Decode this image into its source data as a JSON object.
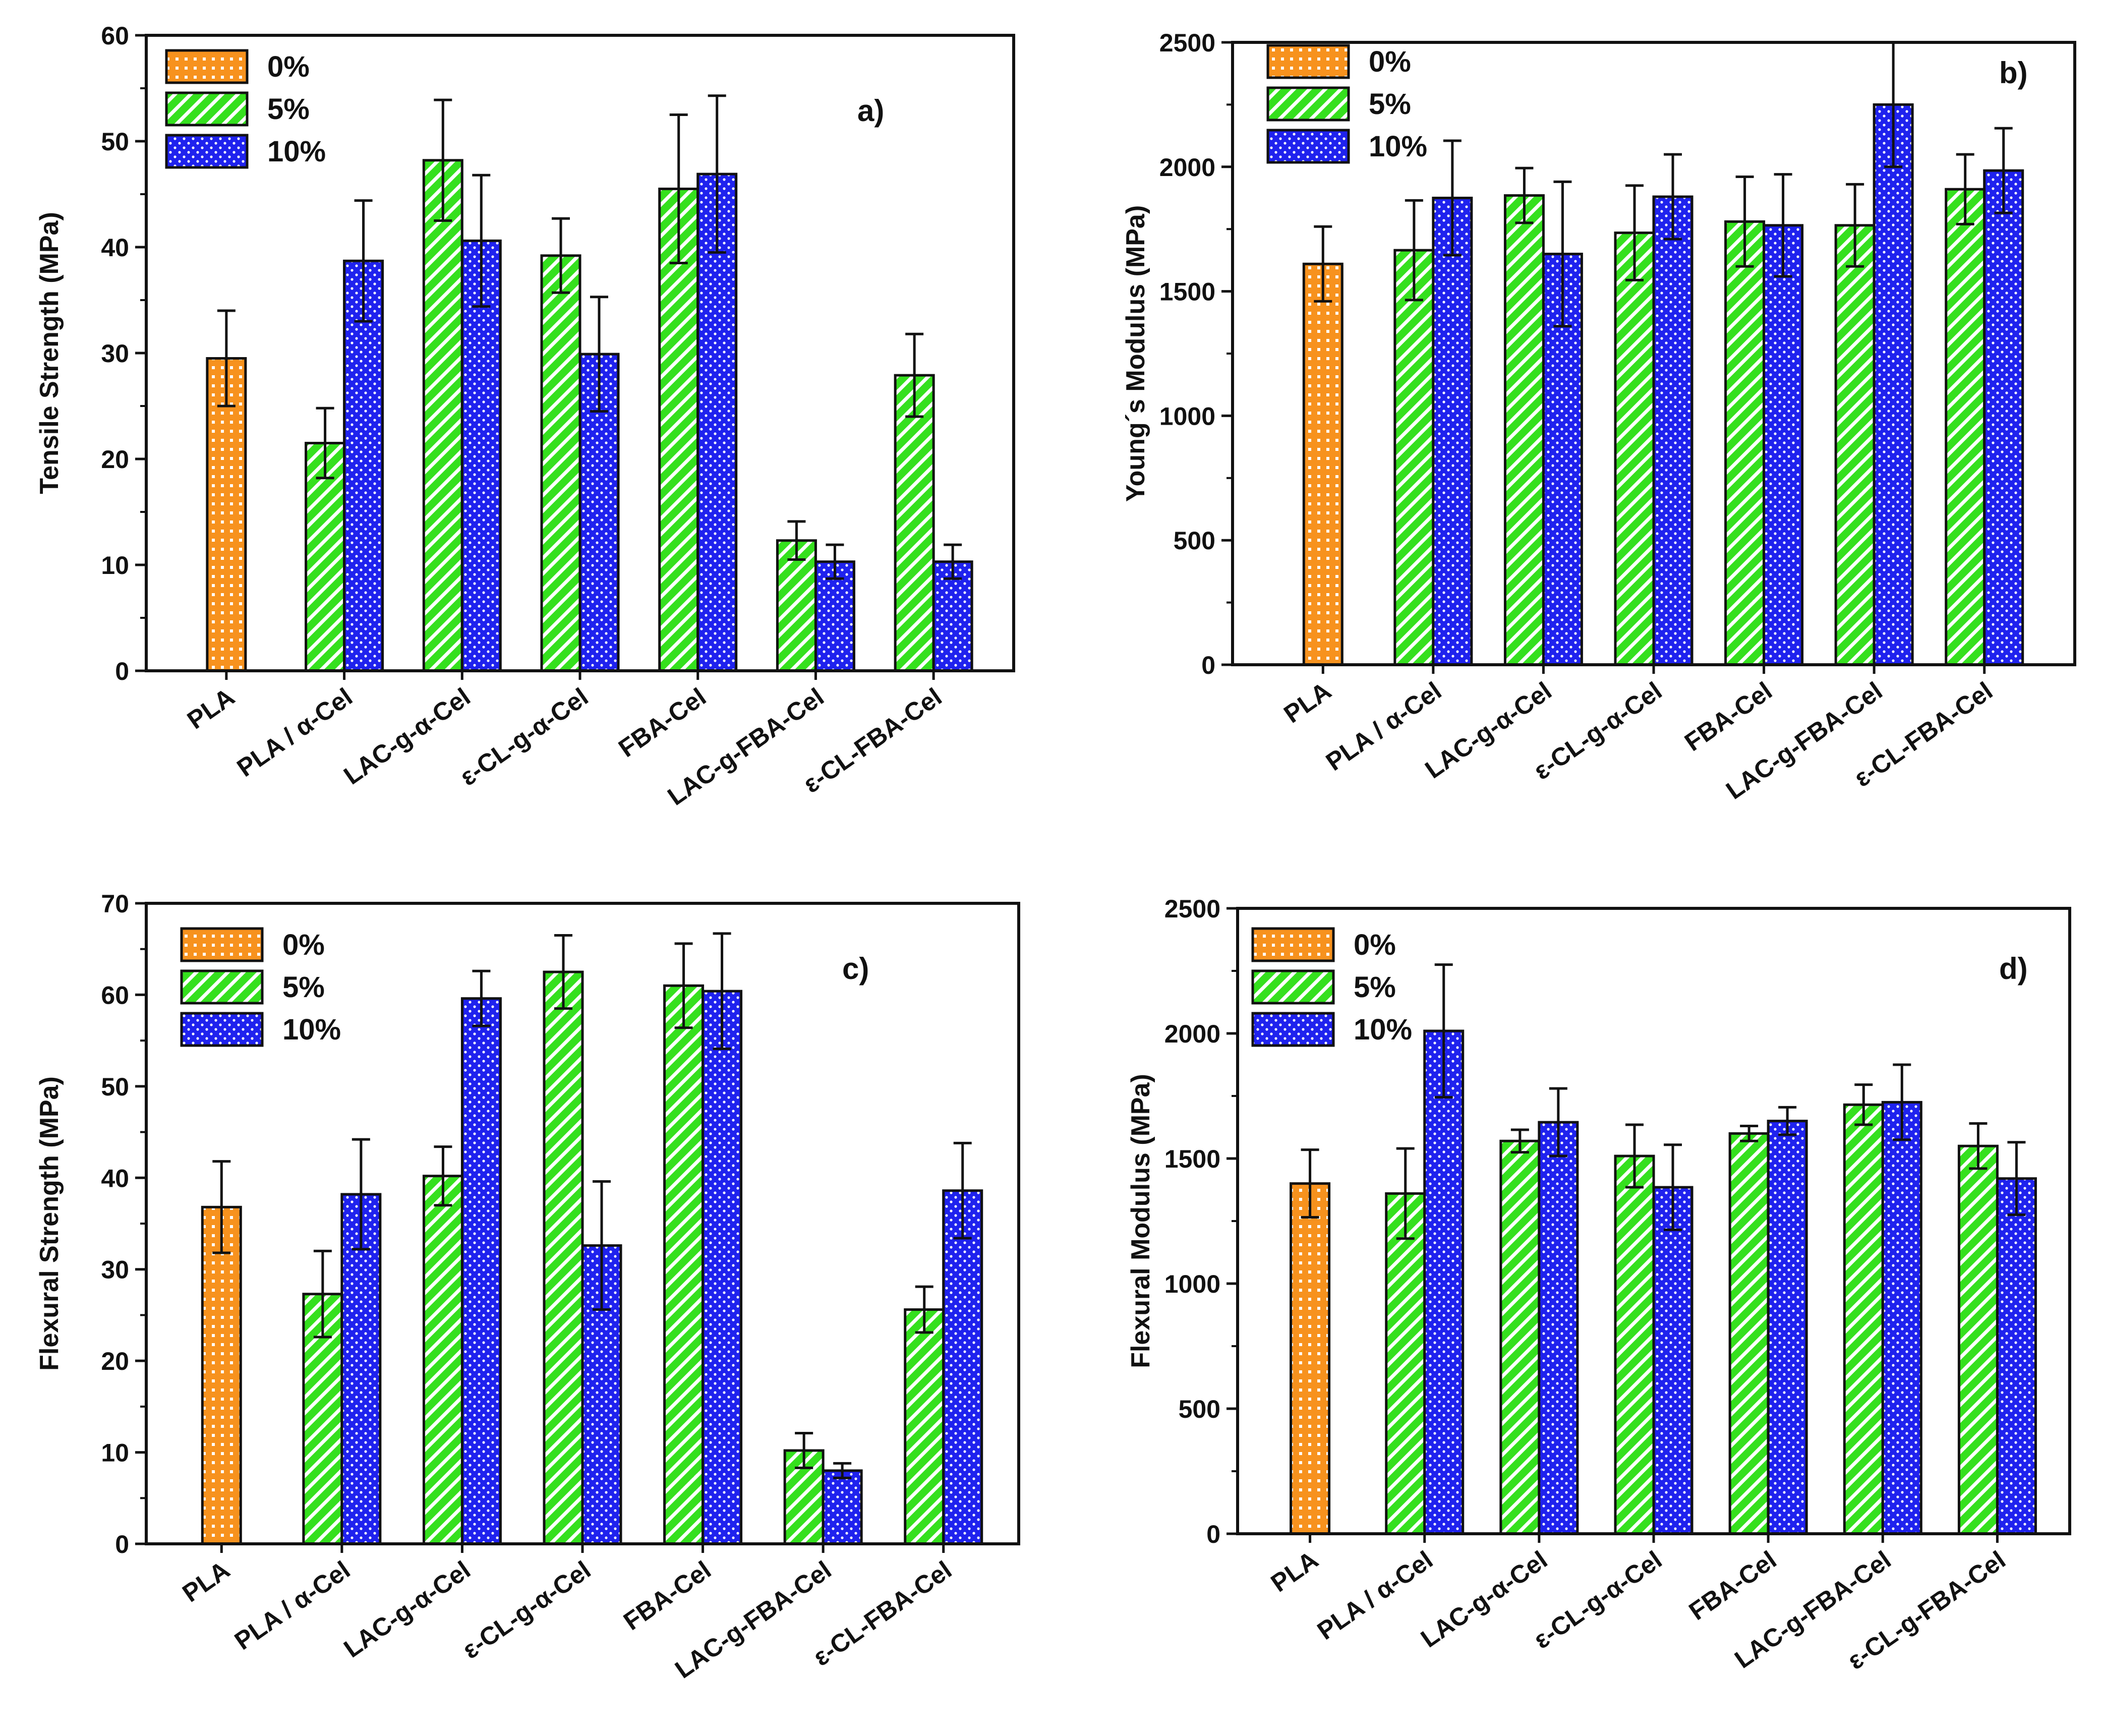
{
  "series_style": {
    "0%": {
      "color": "#F7921E",
      "pattern": "grid"
    },
    "5%": {
      "color": "#35E01E",
      "pattern": "diag"
    },
    "10%": {
      "color": "#1F22EE",
      "pattern": "dots"
    }
  },
  "chart_data": [
    {
      "id": "a",
      "type": "bar",
      "panel_label": "a)",
      "ylabel": "Tensile Strength (MPa)",
      "ylim": [
        0,
        60
      ],
      "yticks": [
        0,
        10,
        20,
        30,
        40,
        50,
        60
      ],
      "categories": [
        "PLA",
        "PLA / α-Cel",
        "LAC-g-α-Cel",
        "ε-CL-g-α-Cel",
        "FBA-Cel",
        "LAC-g-FBA-Cel",
        "ε-CL-FBA-Cel"
      ],
      "legend": [
        "0%",
        "5%",
        "10%"
      ],
      "series": [
        {
          "name": "0%",
          "values": [
            29.5,
            null,
            null,
            null,
            null,
            null,
            null
          ],
          "errors": [
            4.5,
            null,
            null,
            null,
            null,
            null,
            null
          ]
        },
        {
          "name": "5%",
          "values": [
            null,
            21.5,
            48.2,
            39.2,
            45.5,
            12.3,
            27.9
          ],
          "errors": [
            null,
            3.3,
            5.7,
            3.5,
            7.0,
            1.8,
            3.9
          ]
        },
        {
          "name": "10%",
          "values": [
            null,
            38.7,
            40.6,
            29.9,
            46.9,
            10.3,
            10.3
          ],
          "errors": [
            null,
            5.7,
            6.2,
            5.4,
            7.4,
            1.6,
            1.6
          ]
        }
      ]
    },
    {
      "id": "b",
      "type": "bar",
      "panel_label": "b)",
      "ylabel": "Young´s Modulus (MPa)",
      "ylim": [
        0,
        2500
      ],
      "yticks": [
        0,
        500,
        1000,
        1500,
        2000,
        2500
      ],
      "categories": [
        "PLA",
        "PLA / α-Cel",
        "LAC-g-α-Cel",
        "ε-CL-g-α-Cel",
        "FBA-Cel",
        "LAC-g-FBA-Cel",
        "ε-CL-FBA-Cel"
      ],
      "legend": [
        "0%",
        "5%",
        "10%"
      ],
      "series": [
        {
          "name": "0%",
          "values": [
            1610,
            null,
            null,
            null,
            null,
            null,
            null
          ],
          "errors": [
            150,
            null,
            null,
            null,
            null,
            null,
            null
          ]
        },
        {
          "name": "5%",
          "values": [
            null,
            1665,
            1885,
            1735,
            1780,
            1765,
            1910
          ],
          "errors": [
            null,
            200,
            110,
            190,
            180,
            165,
            140
          ]
        },
        {
          "name": "10%",
          "values": [
            null,
            1875,
            1650,
            1880,
            1765,
            2250,
            1985
          ],
          "errors": [
            null,
            230,
            290,
            170,
            205,
            250,
            170
          ]
        }
      ]
    },
    {
      "id": "c",
      "type": "bar",
      "panel_label": "c)",
      "ylabel": "Flexural Strength (MPa)",
      "ylim": [
        0,
        70
      ],
      "yticks": [
        0,
        10,
        20,
        30,
        40,
        50,
        60,
        70
      ],
      "categories": [
        "PLA",
        "PLA / α-Cel",
        "LAC-g-α-Cel",
        "ε-CL-g-α-Cel",
        "FBA-Cel",
        "LAC-g-FBA-Cel",
        "ε-CL-FBA-Cel"
      ],
      "legend": [
        "0%",
        "5%",
        "10%"
      ],
      "series": [
        {
          "name": "0%",
          "values": [
            36.8,
            null,
            null,
            null,
            null,
            null,
            null
          ],
          "errors": [
            5.0,
            null,
            null,
            null,
            null,
            null,
            null
          ]
        },
        {
          "name": "5%",
          "values": [
            null,
            27.3,
            40.2,
            62.5,
            61.0,
            10.2,
            25.6
          ],
          "errors": [
            null,
            4.7,
            3.2,
            4.0,
            4.6,
            1.9,
            2.5
          ]
        },
        {
          "name": "10%",
          "values": [
            null,
            38.2,
            59.6,
            32.6,
            60.4,
            8.0,
            38.6
          ],
          "errors": [
            null,
            6.0,
            3.0,
            7.0,
            6.3,
            0.8,
            5.2
          ]
        }
      ]
    },
    {
      "id": "d",
      "type": "bar",
      "panel_label": "d)",
      "ylabel": "Flexural Modulus (MPa)",
      "ylim": [
        0,
        2500
      ],
      "yticks": [
        0,
        500,
        1000,
        1500,
        2000,
        2500
      ],
      "categories": [
        "PLA",
        "PLA / α-Cel",
        "LAC-g-α-Cel",
        "ε-CL-g-α-Cel",
        "FBA-Cel",
        "LAC-g-FBA-Cel",
        "ε-CL-g-FBA-Cel"
      ],
      "legend": [
        "0%",
        "5%",
        "10%"
      ],
      "series": [
        {
          "name": "0%",
          "values": [
            1400,
            null,
            null,
            null,
            null,
            null,
            null
          ],
          "errors": [
            135,
            null,
            null,
            null,
            null,
            null,
            null
          ]
        },
        {
          "name": "5%",
          "values": [
            null,
            1360,
            1570,
            1510,
            1600,
            1715,
            1550
          ],
          "errors": [
            null,
            180,
            45,
            125,
            30,
            80,
            90
          ]
        },
        {
          "name": "10%",
          "values": [
            null,
            2010,
            1645,
            1385,
            1650,
            1725,
            1420
          ],
          "errors": [
            null,
            265,
            135,
            170,
            55,
            150,
            145
          ]
        }
      ]
    }
  ]
}
